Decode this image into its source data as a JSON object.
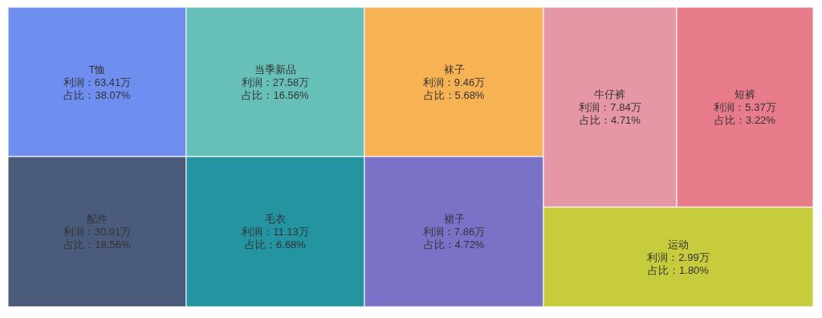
{
  "chart_data": {
    "type": "other",
    "categories": [
      "T恤",
      "配件",
      "当季新品",
      "毛衣",
      "袜子",
      "裙子",
      "牛仔裤",
      "短裤",
      "运动"
    ],
    "series": [
      {
        "colors": [
          "#6e8fef",
          "#4a5b7b",
          "#66c0b7",
          "#2394a0",
          "#f7b353",
          "#7a72c7",
          "#e697a5",
          "#e87c8b",
          "#c6cc3b"
        ],
        "values": [
          63.41,
          30.91,
          27.58,
          11.13,
          9.46,
          7.86,
          7.84,
          5.37,
          2.99
        ],
        "value_labels": [
          "利润：63.41万",
          "利润：30.91万",
          "利润：27.58万",
          "利润：11.13万",
          "利润：9.46万",
          "利润：7.86万",
          "利润：7.84万",
          "利润：5.37万",
          "利润：2.99万"
        ]
      },
      {
        "values": [
          38.07,
          18.56,
          16.56,
          6.68,
          5.68,
          4.72,
          4.71,
          3.22,
          1.8
        ],
        "value_labels": [
          "占比：38.07%",
          "占比：18.56%",
          "占比：16.56%",
          "占比：6.68%",
          "占比：5.68%",
          "占比：4.72%",
          "占比：4.71%",
          "占比：3.22%",
          "占比：1.80%"
        ]
      }
    ]
  }
}
